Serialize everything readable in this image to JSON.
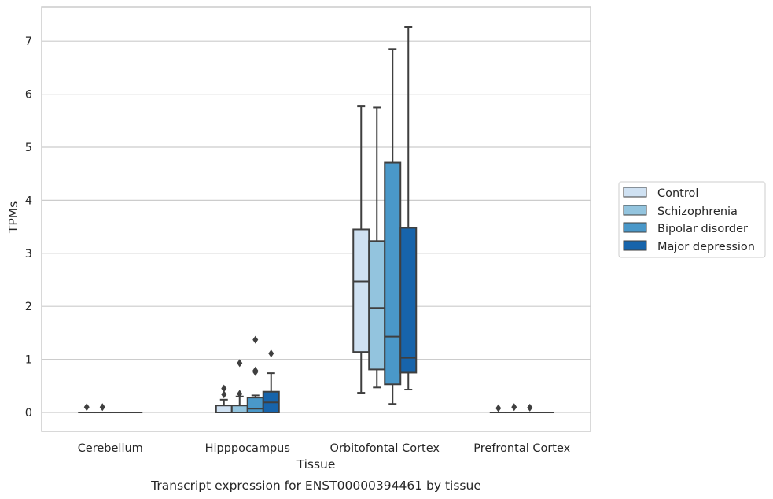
{
  "chart_data": {
    "type": "box",
    "caption": "Transcript expression for ENST00000394461 by tissue",
    "xlabel": "Tissue",
    "ylabel": "TPMs",
    "ylim": [
      -0.35,
      7.65
    ],
    "yticks": [
      0,
      1,
      2,
      3,
      4,
      5,
      6,
      7
    ],
    "grid": "horizontal",
    "legend_position": "right",
    "categories": [
      "Cerebellum",
      "Hipppocampus",
      "Orbitofontal Cortex",
      "Prefrontal Cortex"
    ],
    "colors": {
      "Control": "#cfe1f2",
      "Schizophrenia": "#93c4de",
      "Bipolar disorder": "#4a98c9",
      "Major depression": "#1764ab",
      "edge": "#3f3f3f",
      "grid": "#cccccc",
      "frame": "#cccccc"
    },
    "series": [
      {
        "name": "Control",
        "boxes": [
          {
            "q1": 0,
            "median": 0,
            "q3": 0,
            "whislo": 0,
            "whishi": 0,
            "fliers": [
              0.1
            ]
          },
          {
            "q1": 0,
            "median": 0,
            "q3": 0.13,
            "whislo": 0,
            "whishi": 0.24,
            "fliers": [
              0.34,
              0.45
            ]
          },
          {
            "q1": 1.14,
            "median": 2.47,
            "q3": 3.45,
            "whislo": 0.37,
            "whishi": 5.77,
            "fliers": []
          },
          {
            "q1": 0,
            "median": 0,
            "q3": 0,
            "whislo": 0,
            "whishi": 0,
            "fliers": [
              0.08
            ]
          }
        ]
      },
      {
        "name": "Schizophrenia",
        "boxes": [
          {
            "q1": 0,
            "median": 0,
            "q3": 0,
            "whislo": 0,
            "whishi": 0,
            "fliers": [
              0.1
            ]
          },
          {
            "q1": 0,
            "median": 0,
            "q3": 0.13,
            "whislo": 0,
            "whishi": 0.3,
            "fliers": [
              0.35,
              0.93
            ]
          },
          {
            "q1": 0.81,
            "median": 1.97,
            "q3": 3.23,
            "whislo": 0.47,
            "whishi": 5.75,
            "fliers": []
          },
          {
            "q1": 0,
            "median": 0,
            "q3": 0,
            "whislo": 0,
            "whishi": 0,
            "fliers": [
              0.1
            ]
          }
        ]
      },
      {
        "name": "Bipolar disorder",
        "boxes": [
          {
            "q1": 0,
            "median": 0,
            "q3": 0,
            "whislo": 0,
            "whishi": 0,
            "fliers": []
          },
          {
            "q1": 0,
            "median": 0.07,
            "q3": 0.28,
            "whislo": 0,
            "whishi": 0.32,
            "fliers": [
              0.76,
              0.79,
              1.37
            ]
          },
          {
            "q1": 0.53,
            "median": 1.43,
            "q3": 4.71,
            "whislo": 0.16,
            "whishi": 6.85,
            "fliers": []
          },
          {
            "q1": 0,
            "median": 0,
            "q3": 0,
            "whislo": 0,
            "whishi": 0,
            "fliers": [
              0.09
            ]
          }
        ]
      },
      {
        "name": "Major depression",
        "boxes": [
          {
            "q1": 0,
            "median": 0,
            "q3": 0,
            "whislo": 0,
            "whishi": 0,
            "fliers": []
          },
          {
            "q1": 0,
            "median": 0.19,
            "q3": 0.39,
            "whislo": 0,
            "whishi": 0.74,
            "fliers": [
              1.11
            ]
          },
          {
            "q1": 0.75,
            "median": 1.03,
            "q3": 3.48,
            "whislo": 0.43,
            "whishi": 7.27,
            "fliers": []
          },
          {
            "q1": 0,
            "median": 0,
            "q3": 0,
            "whislo": 0,
            "whishi": 0,
            "fliers": []
          }
        ]
      }
    ]
  }
}
